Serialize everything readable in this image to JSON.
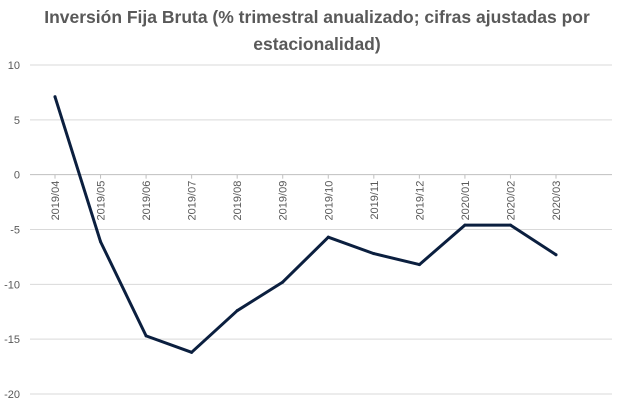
{
  "chart_data": {
    "type": "line",
    "title_lines": [
      "Inversión Fija Bruta (% trimestral anualizado; cifras ajustadas por",
      "estacionalidad)"
    ],
    "categories": [
      "2019/04",
      "2019/05",
      "2019/06",
      "2019/07",
      "2019/08",
      "2019/09",
      "2019/10",
      "2019/11",
      "2019/12",
      "2020/01",
      "2020/02",
      "2020/03"
    ],
    "series": [
      {
        "values": [
          7.1,
          -6.1,
          -14.7,
          -16.2,
          -12.4,
          -9.8,
          -5.7,
          -7.2,
          -8.2,
          -4.6,
          -4.6,
          -7.3
        ]
      }
    ],
    "ylim": [
      -20,
      10
    ],
    "yticks": [
      10,
      5,
      0,
      -5,
      -10,
      -15,
      -20
    ],
    "xlabel": "",
    "ylabel": "",
    "grid": true,
    "legend": "none",
    "line_color": "#0b1f3f",
    "grid_color": "#d9d9d9",
    "axis_color": "#bfbfbf"
  }
}
